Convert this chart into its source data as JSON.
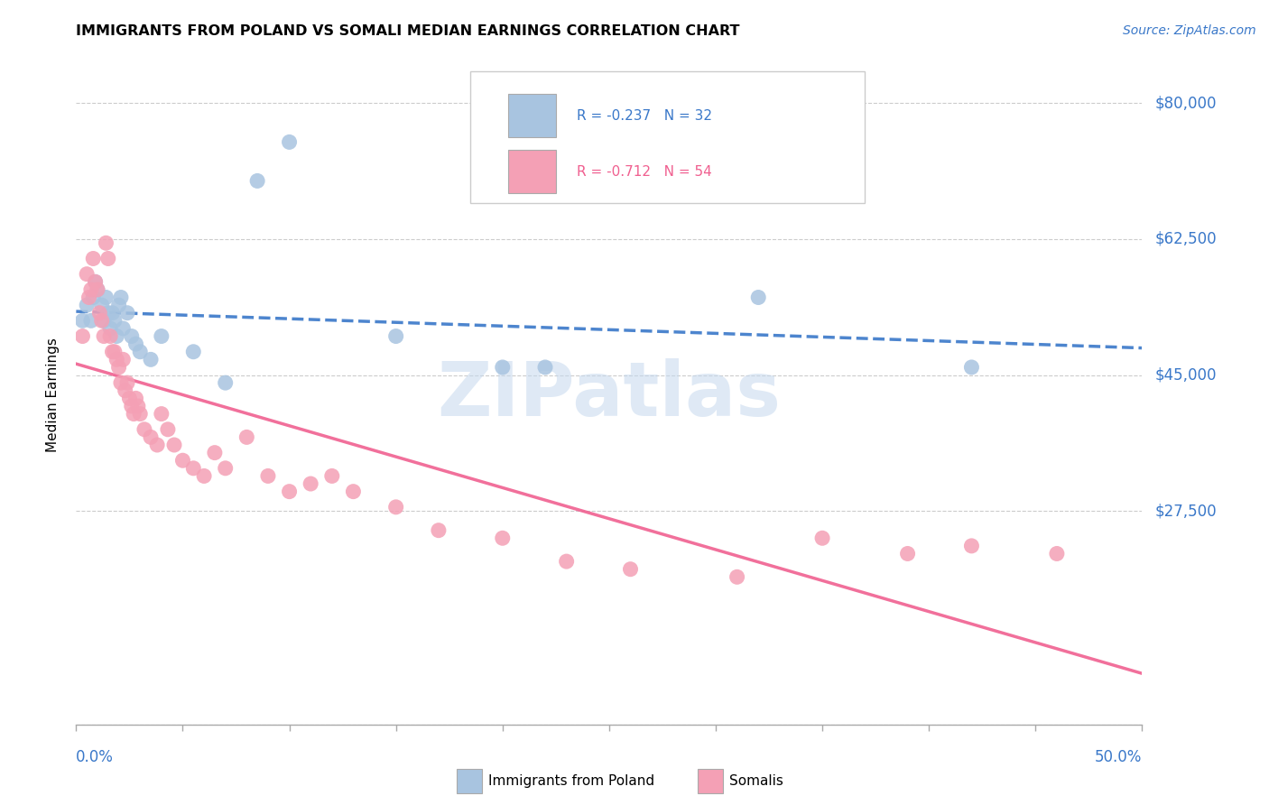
{
  "title": "IMMIGRANTS FROM POLAND VS SOMALI MEDIAN EARNINGS CORRELATION CHART",
  "source": "Source: ZipAtlas.com",
  "ylabel": "Median Earnings",
  "yticks": [
    0,
    27500,
    45000,
    62500,
    80000
  ],
  "ytick_labels": [
    "",
    "$27,500",
    "$45,000",
    "$62,500",
    "$80,000"
  ],
  "xlim": [
    0.0,
    0.5
  ],
  "ylim": [
    0,
    85000
  ],
  "watermark": "ZIPatlas",
  "legend_label1": "Immigrants from Poland",
  "legend_label2": "Somalis",
  "poland_color": "#a8c4e0",
  "somali_color": "#f4a0b5",
  "poland_line_color": "#3a78c9",
  "somali_line_color": "#f06090",
  "poland_scatter_x": [
    0.003,
    0.005,
    0.007,
    0.008,
    0.009,
    0.01,
    0.012,
    0.013,
    0.014,
    0.015,
    0.016,
    0.017,
    0.018,
    0.019,
    0.02,
    0.021,
    0.022,
    0.024,
    0.026,
    0.028,
    0.03,
    0.035,
    0.04,
    0.055,
    0.07,
    0.085,
    0.1,
    0.15,
    0.2,
    0.22,
    0.32,
    0.42
  ],
  "poland_scatter_y": [
    52000,
    54000,
    52000,
    55000,
    57000,
    56000,
    54000,
    52000,
    55000,
    53000,
    51000,
    53000,
    52000,
    50000,
    54000,
    55000,
    51000,
    53000,
    50000,
    49000,
    48000,
    47000,
    50000,
    48000,
    44000,
    70000,
    75000,
    50000,
    46000,
    46000,
    55000,
    46000
  ],
  "somali_scatter_x": [
    0.003,
    0.005,
    0.006,
    0.007,
    0.008,
    0.009,
    0.01,
    0.011,
    0.012,
    0.013,
    0.014,
    0.015,
    0.016,
    0.017,
    0.018,
    0.019,
    0.02,
    0.021,
    0.022,
    0.023,
    0.024,
    0.025,
    0.026,
    0.027,
    0.028,
    0.029,
    0.03,
    0.032,
    0.035,
    0.038,
    0.04,
    0.043,
    0.046,
    0.05,
    0.055,
    0.06,
    0.065,
    0.07,
    0.08,
    0.09,
    0.1,
    0.11,
    0.12,
    0.13,
    0.15,
    0.17,
    0.2,
    0.23,
    0.26,
    0.31,
    0.35,
    0.39,
    0.42,
    0.46
  ],
  "somali_scatter_y": [
    50000,
    58000,
    55000,
    56000,
    60000,
    57000,
    56000,
    53000,
    52000,
    50000,
    62000,
    60000,
    50000,
    48000,
    48000,
    47000,
    46000,
    44000,
    47000,
    43000,
    44000,
    42000,
    41000,
    40000,
    42000,
    41000,
    40000,
    38000,
    37000,
    36000,
    40000,
    38000,
    36000,
    34000,
    33000,
    32000,
    35000,
    33000,
    37000,
    32000,
    30000,
    31000,
    32000,
    30000,
    28000,
    25000,
    24000,
    21000,
    20000,
    19000,
    24000,
    22000,
    23000,
    22000
  ]
}
